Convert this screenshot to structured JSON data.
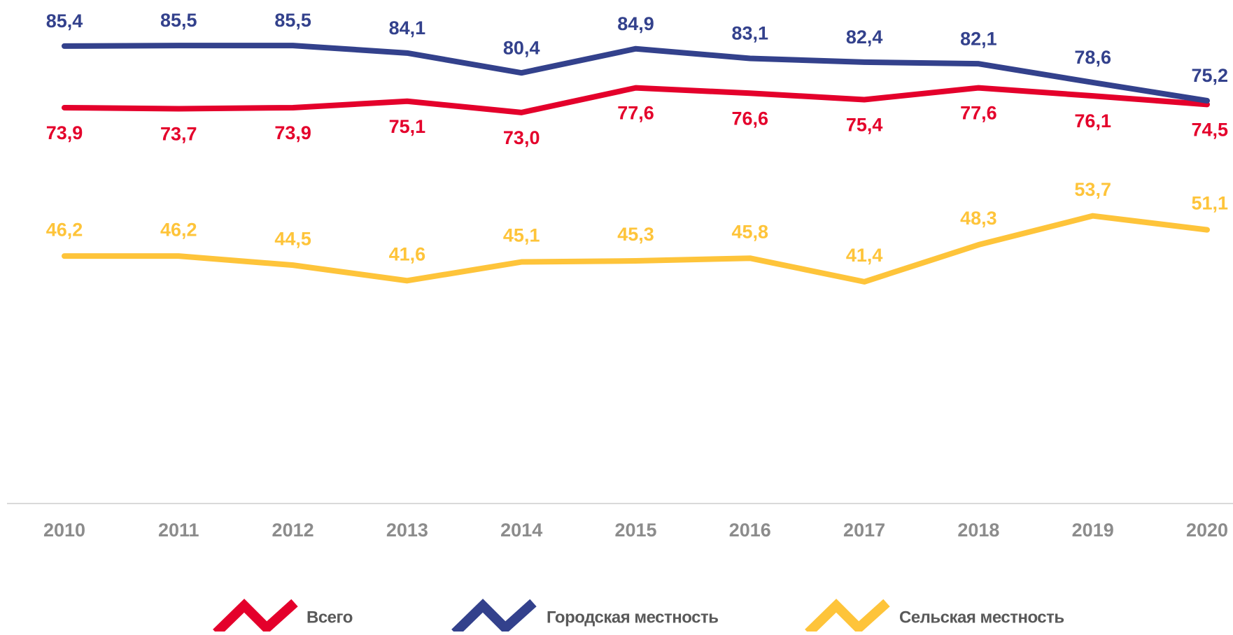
{
  "chart_data": {
    "type": "line",
    "categories": [
      "2010",
      "2011",
      "2012",
      "2013",
      "2014",
      "2015",
      "2016",
      "2017",
      "2018",
      "2019",
      "2020"
    ],
    "ylim": [
      0,
      94
    ],
    "legend": "bottom",
    "series": [
      {
        "name": "Всего",
        "color": "#e4002b",
        "values": [
          73.9,
          73.7,
          73.9,
          75.1,
          73.0,
          77.6,
          76.6,
          75.4,
          77.6,
          76.1,
          74.5
        ],
        "value_labels": [
          "73,9",
          "73,7",
          "73,9",
          "75,1",
          "73,0",
          "77,6",
          "76,6",
          "75,4",
          "77,6",
          "76,1",
          "74,5"
        ]
      },
      {
        "name": "Городская местность",
        "color": "#33418c",
        "values": [
          85.4,
          85.5,
          85.5,
          84.1,
          80.4,
          84.9,
          83.1,
          82.4,
          82.1,
          78.6,
          75.2
        ],
        "value_labels": [
          "85,4",
          "85,5",
          "85,5",
          "84,1",
          "80,4",
          "84,9",
          "83,1",
          "82,4",
          "82,1",
          "78,6",
          "75,2"
        ]
      },
      {
        "name": "Сельская местность",
        "color": "#fec43a",
        "values": [
          46.2,
          46.2,
          44.5,
          41.6,
          45.1,
          45.3,
          45.8,
          41.4,
          48.3,
          53.7,
          51.1
        ],
        "value_labels": [
          "46,2",
          "46,2",
          "44,5",
          "41,6",
          "45,1",
          "45,3",
          "45,8",
          "41,4",
          "48,3",
          "53,7",
          "51,1"
        ]
      }
    ]
  }
}
